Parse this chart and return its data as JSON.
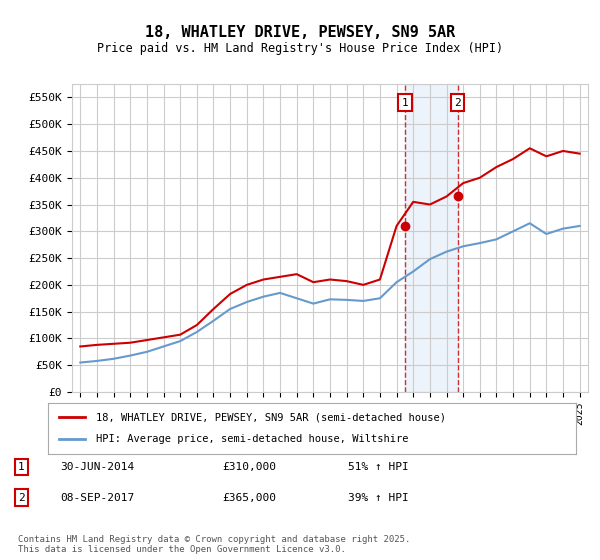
{
  "title": "18, WHATLEY DRIVE, PEWSEY, SN9 5AR",
  "subtitle": "Price paid vs. HM Land Registry's House Price Index (HPI)",
  "ylabel_ticks": [
    "£0",
    "£50K",
    "£100K",
    "£150K",
    "£200K",
    "£250K",
    "£300K",
    "£350K",
    "£400K",
    "£450K",
    "£500K",
    "£550K"
  ],
  "ytick_values": [
    0,
    50000,
    100000,
    150000,
    200000,
    250000,
    300000,
    350000,
    400000,
    450000,
    500000,
    550000
  ],
  "ylim": [
    0,
    575000
  ],
  "xlim_start": 1994.5,
  "xlim_end": 2025.5,
  "sale1_date": 2014.5,
  "sale1_price": 310000,
  "sale1_label": "1",
  "sale2_date": 2017.67,
  "sale2_price": 365000,
  "sale2_label": "2",
  "legend_label_red": "18, WHATLEY DRIVE, PEWSEY, SN9 5AR (semi-detached house)",
  "legend_label_blue": "HPI: Average price, semi-detached house, Wiltshire",
  "annotation1_date": "30-JUN-2014",
  "annotation1_price": "£310,000",
  "annotation1_pct": "51% ↑ HPI",
  "annotation2_date": "08-SEP-2017",
  "annotation2_price": "£365,000",
  "annotation2_pct": "39% ↑ HPI",
  "footer": "Contains HM Land Registry data © Crown copyright and database right 2025.\nThis data is licensed under the Open Government Licence v3.0.",
  "red_color": "#cc0000",
  "blue_color": "#6699cc",
  "shade_color": "#c6d9f0",
  "grid_color": "#cccccc",
  "bg_color": "#ffffff",
  "hpi_years": [
    1995,
    1996,
    1997,
    1998,
    1999,
    2000,
    2001,
    2002,
    2003,
    2004,
    2005,
    2006,
    2007,
    2008,
    2009,
    2010,
    2011,
    2012,
    2013,
    2014,
    2015,
    2016,
    2017,
    2018,
    2019,
    2020,
    2021,
    2022,
    2023,
    2024,
    2025
  ],
  "hpi_values": [
    55000,
    58000,
    62000,
    68000,
    75000,
    85000,
    95000,
    112000,
    133000,
    155000,
    168000,
    178000,
    185000,
    175000,
    165000,
    173000,
    172000,
    170000,
    175000,
    205000,
    225000,
    248000,
    262000,
    272000,
    278000,
    285000,
    300000,
    315000,
    295000,
    305000,
    310000
  ],
  "price_years": [
    1995,
    1996,
    1997,
    1998,
    1999,
    2000,
    2001,
    2002,
    2003,
    2004,
    2005,
    2006,
    2007,
    2008,
    2009,
    2010,
    2011,
    2012,
    2013,
    2014,
    2015,
    2016,
    2017,
    2018,
    2019,
    2020,
    2021,
    2022,
    2023,
    2024,
    2025
  ],
  "price_values": [
    85000,
    88000,
    90000,
    92000,
    97000,
    102000,
    107000,
    125000,
    155000,
    183000,
    200000,
    210000,
    215000,
    220000,
    205000,
    210000,
    207000,
    200000,
    210000,
    310000,
    355000,
    350000,
    365000,
    390000,
    400000,
    420000,
    435000,
    455000,
    440000,
    450000,
    445000
  ]
}
